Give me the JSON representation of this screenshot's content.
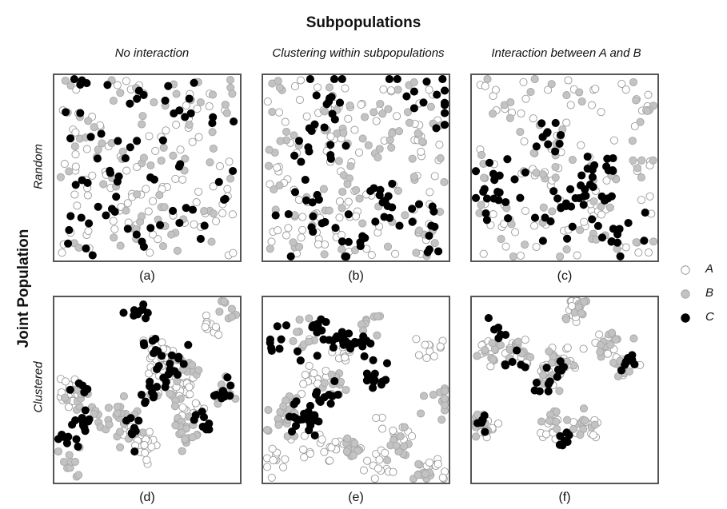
{
  "title": "Subpopulations",
  "side_label": "Joint Population",
  "columns": [
    "No interaction",
    "Clustering within subpopulations",
    "Interaction between A and B"
  ],
  "rows": [
    "Random",
    "Clustered"
  ],
  "panels": [
    {
      "label": "(a)",
      "pattern": "random-independent"
    },
    {
      "label": "(b)",
      "pattern": "random-clustered-within"
    },
    {
      "label": "(c)",
      "pattern": "random-interaction"
    },
    {
      "label": "(d)",
      "pattern": "clustered-independent"
    },
    {
      "label": "(e)",
      "pattern": "clustered-within"
    },
    {
      "label": "(f)",
      "pattern": "clustered-interaction"
    }
  ],
  "legend": [
    {
      "name": "A",
      "fill": "#ffffff",
      "stroke": "#9a9a9a"
    },
    {
      "name": "B",
      "fill": "#c3c3c3",
      "stroke": "#a8a8a8"
    },
    {
      "name": "C",
      "fill": "#000000",
      "stroke": "#000000"
    }
  ],
  "colors": {
    "frame": "#555555",
    "A_stroke": "#9a9a9a",
    "B_fill": "#c3c3c3",
    "C_fill": "#000000"
  }
}
